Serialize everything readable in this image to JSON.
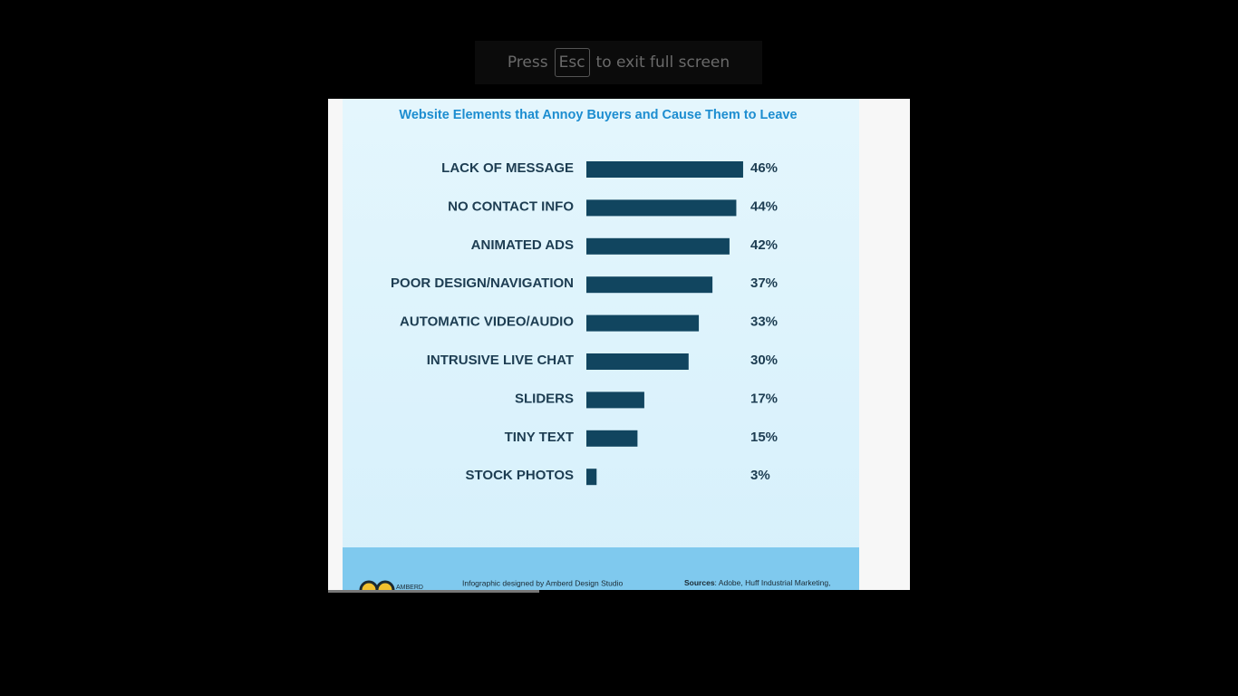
{
  "overlay": {
    "before": "Press",
    "key": "Esc",
    "after": "to exit full screen"
  },
  "chart_data": {
    "type": "bar",
    "orientation": "horizontal",
    "title": "Website Elements that Annoy Buyers and Cause Them to Leave",
    "categories": [
      "LACK OF MESSAGE",
      "NO CONTACT INFO",
      "ANIMATED ADS",
      "POOR DESIGN/NAVIGATION",
      "AUTOMATIC VIDEO/AUDIO",
      "INTRUSIVE LIVE CHAT",
      "SLIDERS",
      "TINY TEXT",
      "STOCK PHOTOS"
    ],
    "values": [
      46,
      44,
      42,
      37,
      33,
      30,
      17,
      15,
      3
    ],
    "value_labels": [
      "46%",
      "44%",
      "42%",
      "37%",
      "33%",
      "30%",
      "17%",
      "15%",
      "3%"
    ],
    "color": "#11455f"
  },
  "footer": {
    "logo": "AMBERD",
    "credit": "Infographic designed by Amberd Design Studio",
    "sources_label": "Sources",
    "sources": ": Adobe, Huff Industrial Marketing,"
  }
}
